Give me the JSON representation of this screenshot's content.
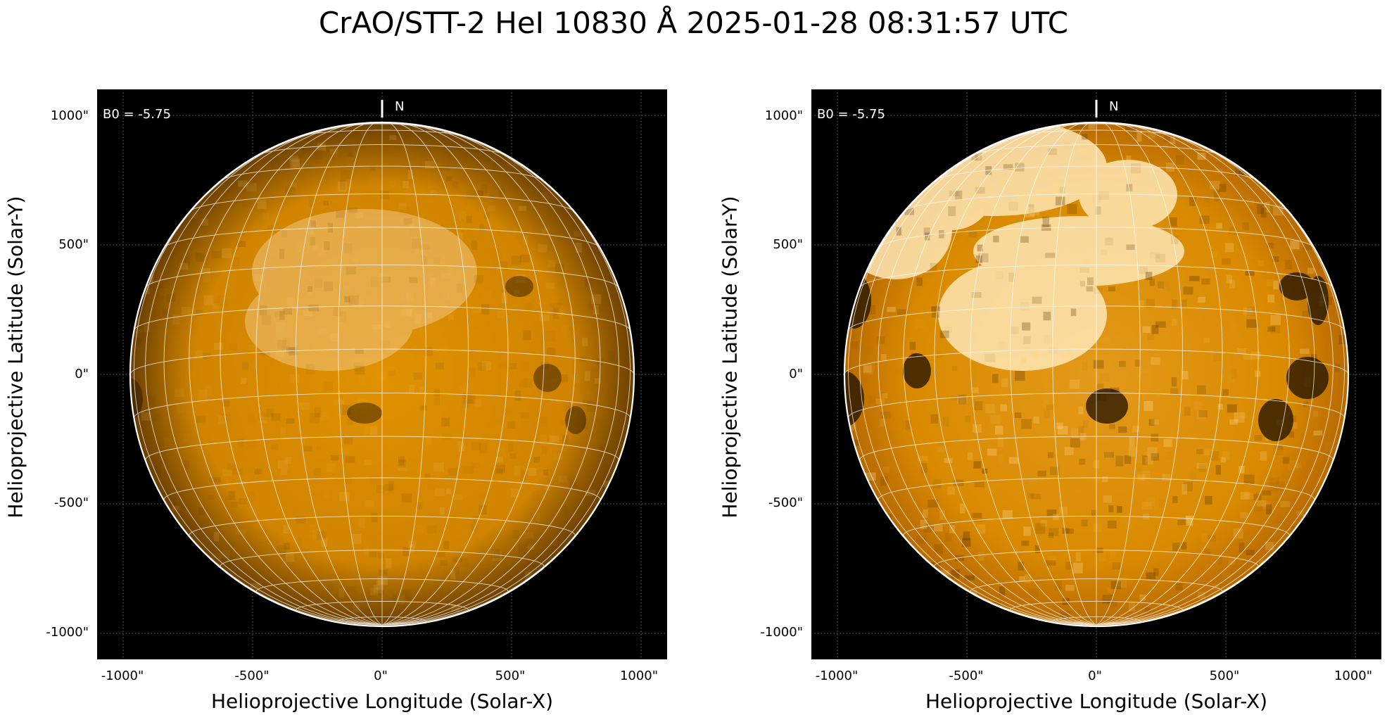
{
  "title": "CrAO/STT-2 HeI 10830 Å 2025-01-28 08:31:57 UTC",
  "colors": {
    "background": "#000000",
    "disk_dark": "#3a2200",
    "disk_mid": "#d98a00",
    "disk_bright": "#ffe7b5",
    "grid": "#ffffff",
    "limb": "#ffffff"
  },
  "panels": [
    {
      "id": "left",
      "contrast": "low",
      "annotation": "B0 = -5.75",
      "north_label": "N",
      "xlabel": "Helioprojective Longitude (Solar-X)",
      "ylabel": "Helioprojective Latitude (Solar-Y)",
      "xticks": [
        "-1000\"",
        "-500\"",
        "0\"",
        "500\"",
        "1000\""
      ],
      "yticks": [
        "1000\"",
        "500\"",
        "0\"",
        "-500\"",
        "-1000\""
      ]
    },
    {
      "id": "right",
      "contrast": "high",
      "annotation": "B0 = -5.75",
      "north_label": "N",
      "xlabel": "Helioprojective Longitude (Solar-X)",
      "ylabel": "Helioprojective Latitude (Solar-Y)",
      "xticks": [
        "-1000\"",
        "-500\"",
        "0\"",
        "500\"",
        "1000\""
      ],
      "yticks": [
        "1000\"",
        "500\"",
        "0\"",
        "-500\"",
        "-1000\""
      ]
    }
  ]
}
